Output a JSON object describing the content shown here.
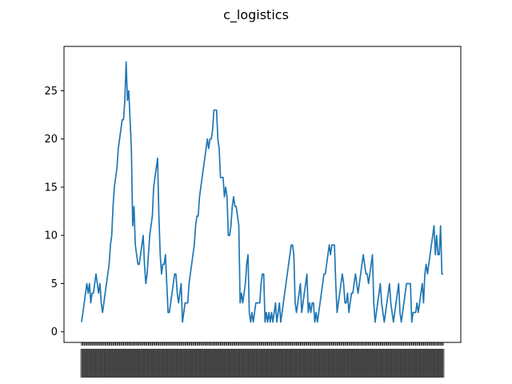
{
  "chart_data": {
    "type": "line",
    "title": "c_logistics",
    "xlabel": "",
    "ylabel": "",
    "ylim": [
      0,
      29
    ],
    "yticks": [
      0,
      5,
      10,
      15,
      20,
      25
    ],
    "grid": false,
    "legend": "none",
    "x_tick_labels_note": "x tick labels are dense and overlapping (illegible)",
    "series": [
      {
        "color": "#1f77b4",
        "values": [
          1,
          2,
          3,
          4,
          5,
          4,
          5,
          3,
          4,
          4,
          5,
          6,
          5,
          4,
          5,
          3,
          2,
          3,
          4,
          5,
          6,
          7,
          9,
          10,
          13,
          15,
          16,
          17,
          19,
          20,
          21,
          22,
          22,
          24,
          28,
          24,
          25,
          22,
          19,
          11,
          13,
          9,
          8,
          7,
          7,
          8,
          9,
          10,
          7,
          5,
          6,
          8,
          10,
          11,
          12,
          15,
          16,
          17,
          18,
          12,
          8,
          6,
          7,
          7,
          8,
          5,
          2,
          2,
          3,
          4,
          5,
          6,
          6,
          4,
          3,
          4,
          5,
          1,
          2,
          3,
          3,
          3,
          5,
          6,
          7,
          8,
          9,
          11,
          12,
          12,
          14,
          15,
          16,
          17,
          18,
          19,
          20,
          19,
          20,
          20,
          21,
          23,
          23,
          23,
          20,
          19,
          16,
          16,
          16,
          14,
          15,
          14,
          10,
          10,
          11,
          13,
          14,
          13,
          13,
          12,
          11,
          3,
          4,
          3,
          4,
          5,
          7,
          8,
          2,
          1,
          2,
          1,
          2,
          3,
          3,
          3,
          3,
          5,
          6,
          6,
          1,
          2,
          1,
          2,
          1,
          2,
          1,
          2,
          3,
          1,
          2,
          3,
          1,
          2,
          3,
          4,
          5,
          6,
          7,
          8,
          9,
          9,
          8,
          3,
          2,
          3,
          4,
          5,
          2,
          3,
          4,
          5,
          6,
          2,
          3,
          2,
          3,
          3,
          1,
          2,
          1,
          2,
          3,
          4,
          5,
          6,
          6,
          7,
          8,
          9,
          8,
          9,
          9,
          9,
          5,
          2,
          3,
          4,
          5,
          6,
          5,
          3,
          3,
          4,
          2,
          3,
          4,
          4,
          5,
          6,
          5,
          4,
          5,
          6,
          7,
          8,
          7,
          6,
          6,
          5,
          6,
          7,
          8,
          3,
          1,
          2,
          3,
          4,
          5,
          3,
          2,
          1,
          2,
          3,
          4,
          5,
          3,
          2,
          1,
          2,
          3,
          4,
          5,
          2,
          1,
          2,
          3,
          4,
          5,
          5,
          5,
          5,
          1,
          2,
          2,
          2,
          3,
          2,
          3,
          4,
          5,
          3,
          6,
          7,
          6,
          7,
          8,
          9,
          10,
          11,
          8,
          10,
          8,
          8,
          11,
          6,
          6
        ]
      }
    ]
  }
}
